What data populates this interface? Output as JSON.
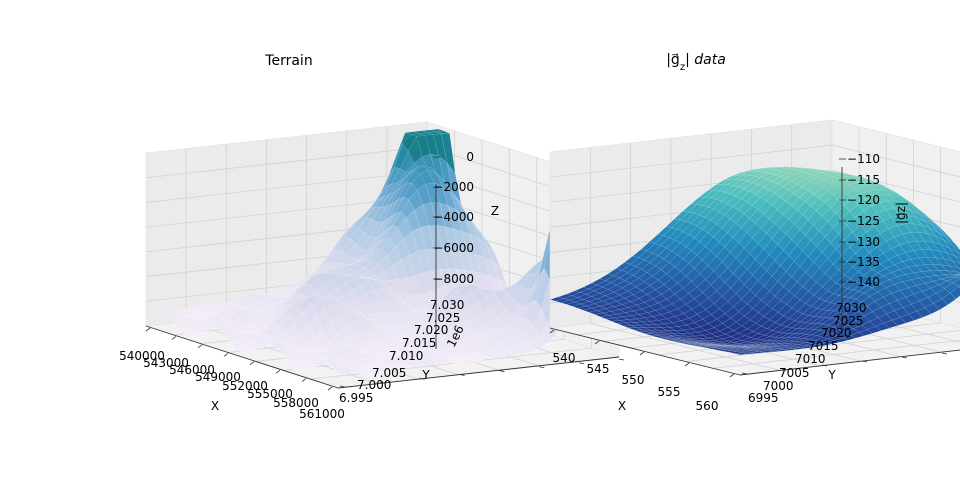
{
  "chart_data": [
    {
      "type": "surface3d",
      "title": "Terrain",
      "xlabel": "X",
      "ylabel": "Y",
      "zlabel": "Z",
      "y_offset_label": "1e6",
      "x_ticks": [
        "540000",
        "543000",
        "546000",
        "549000",
        "552000",
        "555000",
        "558000",
        "561000"
      ],
      "y_ticks": [
        "6.995",
        "7.000",
        "7.005",
        "7.010",
        "7.015",
        "7.020",
        "7.025",
        "7.030"
      ],
      "z_ticks": [
        "0",
        "−2000",
        "−4000",
        "−6000",
        "−8000"
      ],
      "xlim": [
        540000,
        561000
      ],
      "ylim": [
        6995000,
        7030000
      ],
      "zlim": [
        -8700,
        800
      ],
      "colormap": "PuBuGn_r",
      "grid": true
    },
    {
      "type": "surface3d",
      "title": "|g⃗z| data",
      "title_main": "|g⃗",
      "title_sub": "z",
      "title_end": "| data",
      "xlabel": "X",
      "ylabel": "Y",
      "zlabel": "|g⃗z|",
      "x_ticks": [
        "540",
        "545",
        "550",
        "555",
        "560"
      ],
      "y_ticks": [
        "6995",
        "7000",
        "7005",
        "7010",
        "7015",
        "7020",
        "7025",
        "7030"
      ],
      "z_ticks": [
        "−110",
        "−115",
        "−120",
        "−125",
        "−130",
        "−135",
        "−140"
      ],
      "xlim": [
        540,
        561
      ],
      "ylim": [
        6995,
        7030
      ],
      "zlim": [
        -140,
        -110
      ],
      "colormap": "YlGnBu_r",
      "grid": true
    }
  ]
}
